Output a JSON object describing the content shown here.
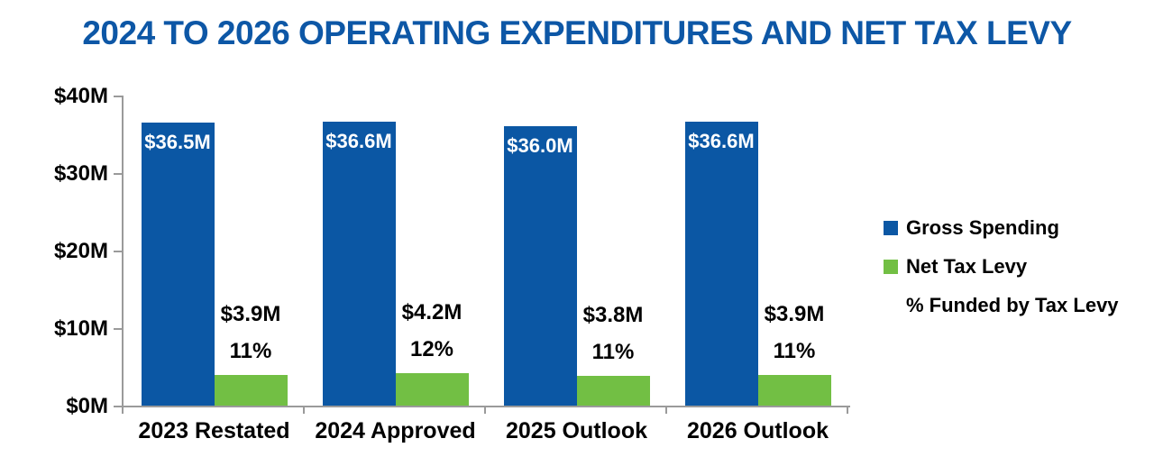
{
  "title": "2024 TO 2026 OPERATING EXPENDITURES AND NET TAX LEVY",
  "colors": {
    "title": "#0d57a6",
    "gross_spending": "#0b57a4",
    "net_tax_levy": "#72bf44",
    "axis": "#9a9a9a",
    "bar_label_light": "#ffffff",
    "label_dark": "#000000"
  },
  "chart_data": {
    "type": "bar",
    "title": "2024 TO 2026 OPERATING EXPENDITURES AND NET TAX LEVY",
    "categories": [
      "2023 Restated",
      "2024 Approved",
      "2025 Outlook",
      "2026 Outlook"
    ],
    "series": [
      {
        "name": "Gross Spending",
        "color_key": "gross_spending",
        "values": [
          36.5,
          36.6,
          36.0,
          36.6
        ],
        "labels": [
          "$36.5M",
          "$36.6M",
          "$36.0M",
          "$36.6M"
        ]
      },
      {
        "name": "Net Tax Levy",
        "color_key": "net_tax_levy",
        "values": [
          3.9,
          4.2,
          3.8,
          3.9
        ],
        "labels": [
          "$3.9M",
          "$4.2M",
          "$3.8M",
          "$3.9M"
        ]
      }
    ],
    "pct_funded": {
      "name": "% Funded by Tax Levy",
      "labels": [
        "11%",
        "12%",
        "11%",
        "11%"
      ]
    },
    "y_axis": {
      "ylim": [
        0,
        40
      ],
      "ticks": [
        {
          "value": 0,
          "label": "$0M"
        },
        {
          "value": 10,
          "label": "$10M"
        },
        {
          "value": 20,
          "label": "$20M"
        },
        {
          "value": 30,
          "label": "$30M"
        },
        {
          "value": 40,
          "label": "$40M"
        }
      ]
    },
    "grid": false,
    "legend_position": "right",
    "legend": [
      {
        "label": "Gross Spending",
        "swatch_key": "gross_spending"
      },
      {
        "label": "Net Tax Levy",
        "swatch_key": "net_tax_levy"
      },
      {
        "label": "% Funded by Tax Levy",
        "swatch_key": null
      }
    ]
  }
}
